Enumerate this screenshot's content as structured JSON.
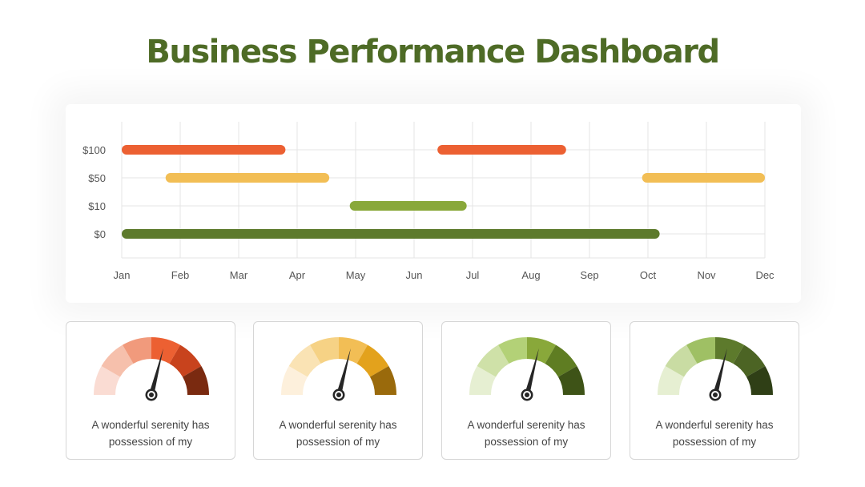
{
  "title": "Business Performance Dashboard",
  "colors": {
    "title": "#4e6b26",
    "orange": "#ec6032",
    "yellow": "#f2be55",
    "light_green": "#89a83a",
    "dark_green": "#5d7a2c",
    "grid": "#e4e4e4"
  },
  "chart_data": {
    "type": "bar",
    "orientation": "horizontal-range",
    "categories": [
      "$100",
      "$50",
      "$10",
      "$0"
    ],
    "x_ticks": [
      "Jan",
      "Feb",
      "Mar",
      "Apr",
      "May",
      "Jun",
      "Jul",
      "Aug",
      "Sep",
      "Oct",
      "Nov",
      "Dec"
    ],
    "grid": true,
    "series": [
      {
        "category": "$100",
        "color": "#ec6032",
        "start": "Jan",
        "end": "Apr",
        "start_index": 0,
        "end_index": 2.8
      },
      {
        "category": "$100",
        "color": "#ec6032",
        "start": "Jun",
        "end": "Aug",
        "start_index": 5.4,
        "end_index": 7.6
      },
      {
        "category": "$50",
        "color": "#f2be55",
        "start": "Feb",
        "end": "Apr",
        "start_index": 0.75,
        "end_index": 3.55
      },
      {
        "category": "$50",
        "color": "#f2be55",
        "start": "Oct",
        "end": "Dec",
        "start_index": 8.9,
        "end_index": 11.0
      },
      {
        "category": "$10",
        "color": "#89a83a",
        "start": "May",
        "end": "Jul",
        "start_index": 3.9,
        "end_index": 5.9
      },
      {
        "category": "$0",
        "color": "#5d7a2c",
        "start": "Jan",
        "end": "Oct",
        "start_index": 0,
        "end_index": 9.2
      }
    ]
  },
  "gauges": [
    {
      "caption_line1": "A wonderful serenity has",
      "caption_line2": "possession of my",
      "value": 0.58,
      "colors": [
        "#fadcd3",
        "#f6c0ac",
        "#f19a7c",
        "#ec6032",
        "#c8431d",
        "#7a2a10"
      ]
    },
    {
      "caption_line1": "A wonderful serenity has",
      "caption_line2": "possession of my",
      "value": 0.58,
      "colors": [
        "#fdf0dc",
        "#fae3b4",
        "#f6d285",
        "#f2be55",
        "#e3a21c",
        "#9a6a0c"
      ]
    },
    {
      "caption_line1": "A wonderful serenity has",
      "caption_line2": "possession of my",
      "value": 0.58,
      "colors": [
        "#e6efd2",
        "#cfe1a8",
        "#b3d177",
        "#89a83a",
        "#5f7d22",
        "#3e5317"
      ]
    },
    {
      "caption_line1": "A wonderful serenity has",
      "caption_line2": "possession of my",
      "value": 0.58,
      "colors": [
        "#e6efd2",
        "#c9dca3",
        "#9fc064",
        "#5d7a2c",
        "#4c6424",
        "#2f3f16"
      ]
    }
  ]
}
